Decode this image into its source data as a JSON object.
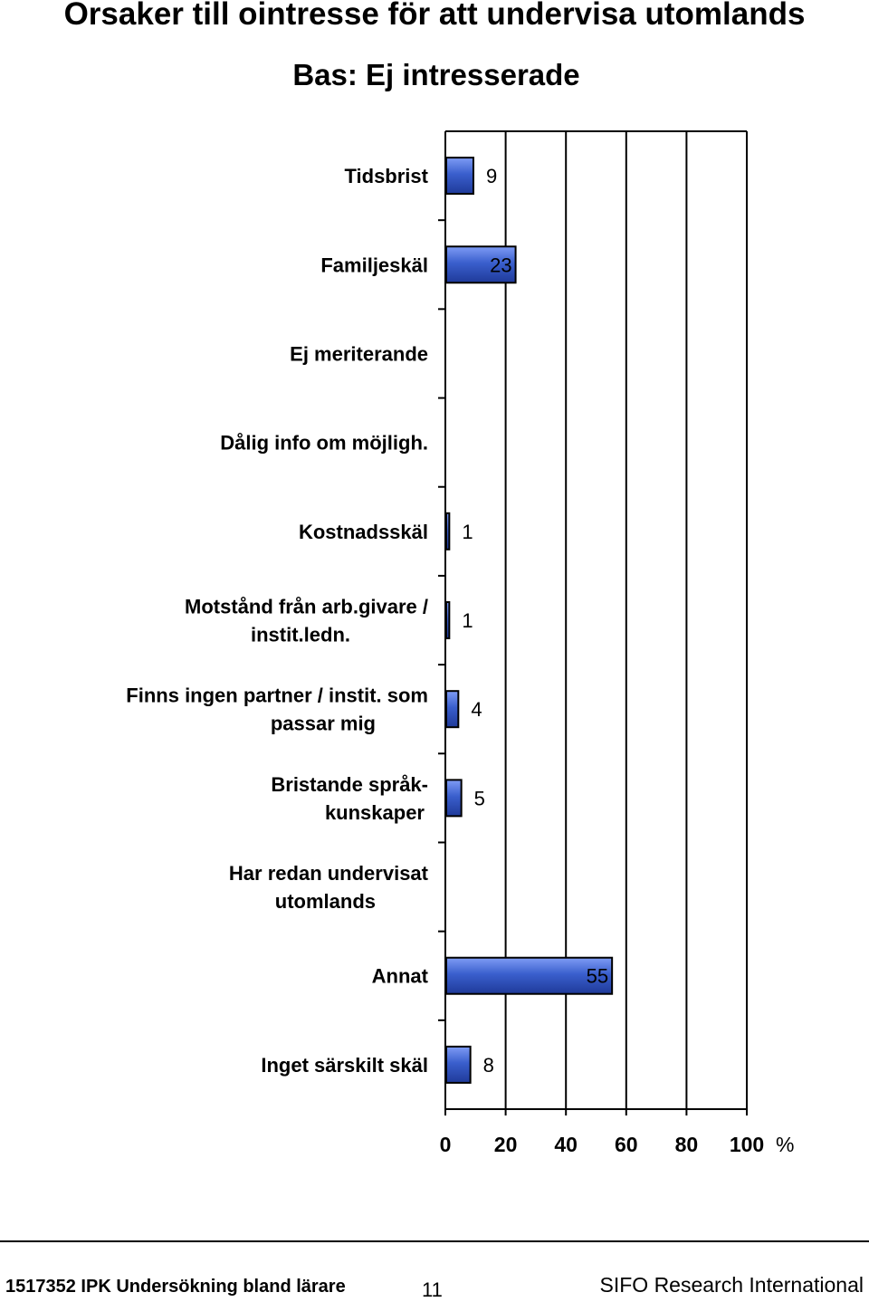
{
  "chart_data": {
    "type": "bar",
    "orientation": "horizontal",
    "title": "Orsaker till ointresse för att undervisa utomlands",
    "subtitle": "Bas: Ej intresserade",
    "categories": [
      [
        "Tidsbrist"
      ],
      [
        "Familjeskäl"
      ],
      [
        "Ej meriterande"
      ],
      [
        "Dålig info om möjligh."
      ],
      [
        "Kostnadsskäl"
      ],
      [
        "Motstånd från arb.givare /",
        "instit.ledn."
      ],
      [
        "Finns ingen partner / instit. som",
        "passar mig"
      ],
      [
        "Bristande språk-",
        "kunskaper"
      ],
      [
        "Har redan undervisat",
        "utomlands"
      ],
      [
        "Annat"
      ],
      [
        "Inget särskilt skäl"
      ]
    ],
    "values": [
      9,
      23,
      null,
      null,
      1,
      1,
      4,
      5,
      null,
      55,
      8
    ],
    "data_labels": [
      "9",
      "23",
      "",
      "",
      "1",
      "1",
      "4",
      "5",
      "",
      "55",
      "8"
    ],
    "xlim": [
      0,
      100
    ],
    "xticks": [
      "0",
      "20",
      "40",
      "60",
      "80",
      "100"
    ],
    "xunit": "%",
    "grid": true,
    "bar_color": "#3a5fcd"
  },
  "footer": {
    "left": "1517352 IPK Undersökning bland lärare",
    "page": "11",
    "right": "SIFO Research International"
  }
}
